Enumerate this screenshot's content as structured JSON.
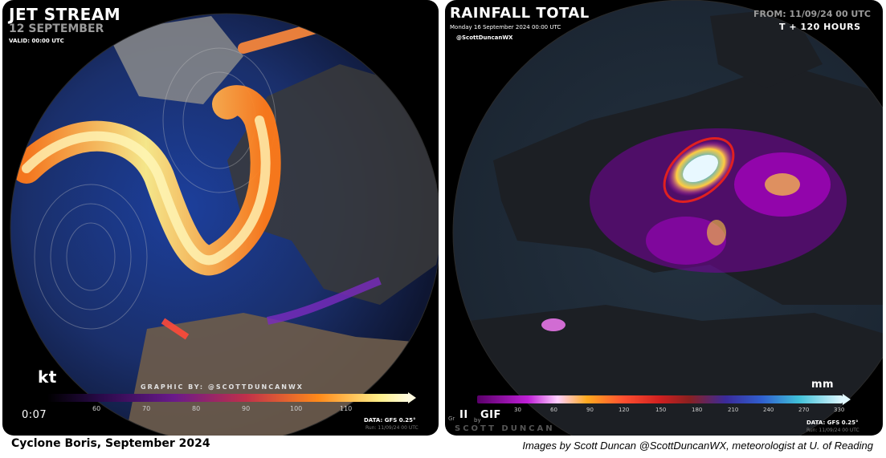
{
  "left_panel": {
    "title": "JET STREAM",
    "date": "12 SEPTEMBER",
    "valid": "VALID: 00:00 UTC",
    "unit": "kt",
    "credit": "GRAPHIC BY: @SCOTTDUNCANWX",
    "timer": "0:07",
    "data_source": "DATA: GFS 0.25°",
    "run": "Run: 11/09/24 00 UTC",
    "colorbar_ticks": [
      "60",
      "70",
      "80",
      "90",
      "100",
      "110"
    ]
  },
  "right_panel": {
    "title": "RAINFALL TOTAL",
    "date_line": "Monday 16 September 2024 00:00 UTC",
    "handle": "@ScottDuncanWX",
    "from": "FROM: 11/09/24 00 UTC",
    "lead": "T + 120 HOURS",
    "unit": "mm",
    "pause_icon_label": "II",
    "gif_label": "GIF",
    "gr_label": "Gr",
    "by_label": "by",
    "watermark": "SCOTT DUNCAN",
    "data_source": "DATA: GFS 0.25°",
    "run": "Run: 11/09/24 00 UTC",
    "colorbar_ticks": [
      "30",
      "60",
      "90",
      "120",
      "150",
      "180",
      "210",
      "240",
      "270",
      "330"
    ]
  },
  "captions": {
    "left": "Cyclone Boris, September 2024",
    "right": "Images by Scott Duncan @ScottDuncanWX, meteorologist at U. of Reading"
  },
  "colors": {
    "jet_core": "#ffef8a",
    "jet_edge": "#ff6a1a",
    "rain_purple": "#b000d0",
    "annotation_circle": "#e02020"
  }
}
